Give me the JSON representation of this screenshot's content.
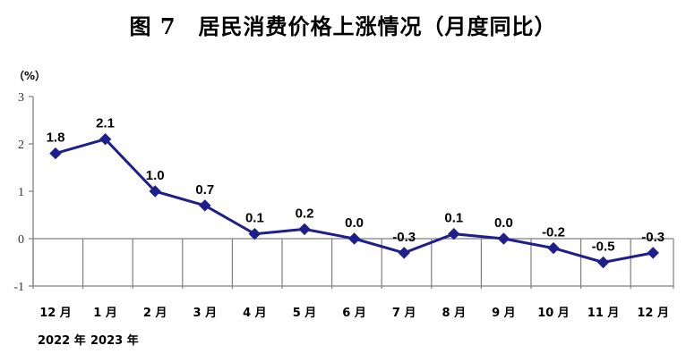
{
  "chart_data": {
    "type": "line",
    "title": "图 7　居民消费价格上涨情况（月度同比）",
    "ylabel": "（%）",
    "ylim": [
      -1,
      3
    ],
    "yticks": [
      "3",
      "2",
      "1",
      "0",
      "-1"
    ],
    "categories": [
      "12 月",
      "1 月",
      "2 月",
      "3 月",
      "4 月",
      "5 月",
      "6 月",
      "7 月",
      "8 月",
      "9 月",
      "10 月",
      "11 月",
      "12 月"
    ],
    "year_labels": [
      "2022 年",
      "2023 年"
    ],
    "series": [
      {
        "values": [
          1.8,
          2.1,
          1.0,
          0.7,
          0.1,
          0.2,
          0.0,
          -0.3,
          0.1,
          0.0,
          -0.2,
          -0.5,
          -0.3
        ],
        "data_labels": [
          "1.8",
          "2.1",
          "1.0",
          "0.7",
          "0.1",
          "0.2",
          "0.0",
          "-0.3",
          "0.1",
          "0.0",
          "-0.2",
          "-0.5",
          "-0.3"
        ],
        "color": "#1f1f8c"
      }
    ],
    "grid": false,
    "legend": "none"
  }
}
